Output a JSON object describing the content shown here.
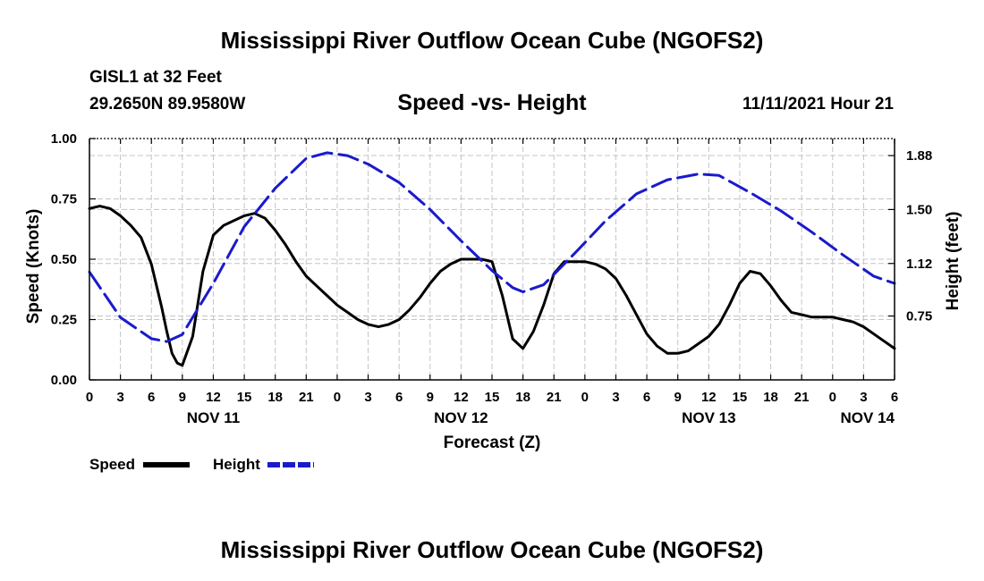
{
  "header": {
    "title": "Mississippi River Outflow Ocean Cube (NGOFS2)",
    "station": "GISL1 at 32 Feet",
    "coordinates": "29.2650N  89.9580W",
    "subtitle": "Speed -vs- Height",
    "datetime": "11/11/2021 Hour 21"
  },
  "footer": {
    "title": "Mississippi River Outflow Ocean Cube (NGOFS2)"
  },
  "chart_data": {
    "type": "line",
    "title": "Speed -vs- Height",
    "xlabel": "Forecast (Z)",
    "ylabel": "Speed (Knots)",
    "y2label": "Height (feet)",
    "x_unit": "forecast hour from NOV 11 00Z",
    "xlim": [
      0,
      78
    ],
    "ylim": [
      0,
      1.0
    ],
    "y2lim": [
      0.3,
      2.0
    ],
    "grid": true,
    "x_ticks": [
      {
        "x": 0,
        "label": "0"
      },
      {
        "x": 3,
        "label": "3"
      },
      {
        "x": 6,
        "label": "6"
      },
      {
        "x": 9,
        "label": "9"
      },
      {
        "x": 12,
        "label": "12"
      },
      {
        "x": 15,
        "label": "15"
      },
      {
        "x": 18,
        "label": "18"
      },
      {
        "x": 21,
        "label": "21"
      },
      {
        "x": 24,
        "label": "0"
      },
      {
        "x": 27,
        "label": "3"
      },
      {
        "x": 30,
        "label": "6"
      },
      {
        "x": 33,
        "label": "9"
      },
      {
        "x": 36,
        "label": "12"
      },
      {
        "x": 39,
        "label": "15"
      },
      {
        "x": 42,
        "label": "18"
      },
      {
        "x": 45,
        "label": "21"
      },
      {
        "x": 48,
        "label": "0"
      },
      {
        "x": 51,
        "label": "3"
      },
      {
        "x": 54,
        "label": "6"
      },
      {
        "x": 57,
        "label": "9"
      },
      {
        "x": 60,
        "label": "12"
      },
      {
        "x": 63,
        "label": "15"
      },
      {
        "x": 66,
        "label": "18"
      },
      {
        "x": 69,
        "label": "21"
      },
      {
        "x": 72,
        "label": "0"
      },
      {
        "x": 75,
        "label": "3"
      },
      {
        "x": 78,
        "label": "6"
      }
    ],
    "date_labels": [
      {
        "x": 12,
        "label": "NOV 11"
      },
      {
        "x": 36,
        "label": "NOV 12"
      },
      {
        "x": 60,
        "label": "NOV 13"
      },
      {
        "x": 78,
        "label": "NOV 14"
      }
    ],
    "y_ticks": [
      {
        "y": 0.0,
        "label": "0.00"
      },
      {
        "y": 0.25,
        "label": "0.25"
      },
      {
        "y": 0.5,
        "label": "0.50"
      },
      {
        "y": 0.75,
        "label": "0.75"
      },
      {
        "y": 1.0,
        "label": "1.00"
      }
    ],
    "y2_ticks": [
      {
        "y": 0.75,
        "label": "0.75"
      },
      {
        "y": 1.12,
        "label": "1.12"
      },
      {
        "y": 1.5,
        "label": "1.50"
      },
      {
        "y": 1.88,
        "label": "1.88"
      }
    ],
    "legend": {
      "position": "bottom-left",
      "entries": [
        {
          "name": "Speed",
          "color": "#000000",
          "style": "solid"
        },
        {
          "name": "Height",
          "color": "#1a1acc",
          "style": "dashed"
        }
      ]
    },
    "series": [
      {
        "name": "Speed",
        "axis": "left",
        "color": "#000000",
        "style": "solid",
        "x": [
          0,
          1,
          2,
          3,
          4,
          5,
          6,
          7,
          7.5,
          8,
          8.5,
          9,
          10,
          11,
          12,
          13,
          14,
          15,
          16,
          17,
          18,
          19,
          20,
          21,
          22,
          23,
          24,
          25,
          26,
          27,
          28,
          29,
          30,
          31,
          32,
          33,
          34,
          35,
          36,
          37,
          38,
          39,
          40,
          41,
          42,
          43,
          44,
          45,
          46,
          47,
          48,
          49,
          50,
          51,
          52,
          53,
          54,
          55,
          56,
          57,
          58,
          59,
          60,
          61,
          62,
          63,
          64,
          65,
          66,
          67,
          68,
          69,
          70,
          71,
          72,
          73,
          74,
          75,
          76,
          77,
          78
        ],
        "values": [
          0.71,
          0.72,
          0.71,
          0.68,
          0.64,
          0.59,
          0.48,
          0.3,
          0.2,
          0.11,
          0.07,
          0.06,
          0.18,
          0.45,
          0.6,
          0.64,
          0.66,
          0.68,
          0.69,
          0.67,
          0.62,
          0.56,
          0.49,
          0.43,
          0.39,
          0.35,
          0.31,
          0.28,
          0.25,
          0.23,
          0.22,
          0.23,
          0.25,
          0.29,
          0.34,
          0.4,
          0.45,
          0.48,
          0.5,
          0.5,
          0.5,
          0.49,
          0.35,
          0.17,
          0.13,
          0.2,
          0.31,
          0.44,
          0.49,
          0.49,
          0.49,
          0.48,
          0.46,
          0.42,
          0.35,
          0.27,
          0.19,
          0.14,
          0.11,
          0.11,
          0.12,
          0.15,
          0.18,
          0.23,
          0.31,
          0.4,
          0.45,
          0.44,
          0.39,
          0.33,
          0.28,
          0.27,
          0.26,
          0.26,
          0.26,
          0.25,
          0.24,
          0.22,
          0.19,
          0.16,
          0.13
        ]
      },
      {
        "name": "Height",
        "axis": "right",
        "color": "#1a1acc",
        "style": "dashed",
        "x": [
          0,
          3,
          6,
          7.5,
          9,
          12,
          15,
          18,
          21,
          23,
          25,
          27,
          30,
          33,
          36,
          39,
          41,
          42,
          44,
          47,
          50,
          53,
          56,
          59,
          61,
          64,
          67,
          70,
          73,
          76,
          78
        ],
        "values": [
          1.06,
          0.74,
          0.59,
          0.57,
          0.62,
          0.98,
          1.38,
          1.65,
          1.86,
          1.9,
          1.88,
          1.82,
          1.69,
          1.5,
          1.28,
          1.07,
          0.95,
          0.92,
          0.97,
          1.19,
          1.42,
          1.61,
          1.71,
          1.75,
          1.74,
          1.62,
          1.49,
          1.34,
          1.18,
          1.03,
          0.98
        ]
      }
    ]
  }
}
